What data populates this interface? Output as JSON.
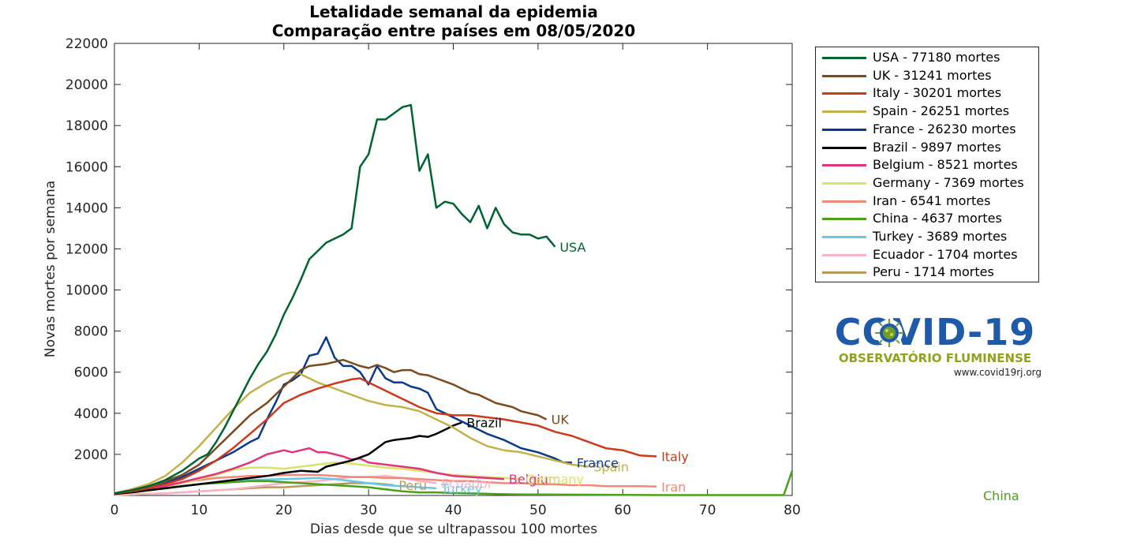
{
  "chart_data": {
    "type": "line",
    "title": [
      "Letalidade semanal da epidemia",
      "Comparação entre países em 08/05/2020"
    ],
    "xlabel": "Dias desde que se ultrapassou 100 mortes",
    "ylabel": "Novas mortes por semana",
    "xlim": [
      0,
      80
    ],
    "ylim": [
      0,
      22000
    ],
    "xticks": [
      0,
      10,
      20,
      30,
      40,
      50,
      60,
      70,
      80
    ],
    "yticks": [
      2000,
      4000,
      6000,
      8000,
      10000,
      12000,
      14000,
      16000,
      18000,
      20000,
      22000
    ],
    "grid": false,
    "legend_position": "outside-right",
    "series": [
      {
        "name": "USA - 77180 mortes",
        "end_label": "USA",
        "color": "#006430",
        "x": [
          0,
          2,
          4,
          6,
          8,
          10,
          11,
          12,
          13,
          14,
          15,
          16,
          17,
          18,
          19,
          20,
          21,
          22,
          23,
          24,
          25,
          26,
          27,
          28,
          29,
          30,
          31,
          32,
          33,
          34,
          35,
          36,
          37,
          38,
          39,
          40,
          41,
          42,
          43,
          44,
          45,
          46,
          47,
          48,
          49,
          50,
          51,
          52
        ],
        "y": [
          100,
          250,
          450,
          750,
          1200,
          1800,
          2000,
          2600,
          3300,
          4100,
          4900,
          5700,
          6400,
          7000,
          7800,
          8800,
          9600,
          10500,
          11500,
          11900,
          12300,
          12500,
          12700,
          13000,
          16000,
          16600,
          18300,
          18300,
          18600,
          18900,
          19000,
          15800,
          16600,
          14000,
          14300,
          14200,
          13700,
          13300,
          14100,
          13000,
          14000,
          13200,
          12800,
          12700,
          12700,
          12500,
          12600,
          12100
        ]
      },
      {
        "name": "UK - 31241 mortes",
        "end_label": "UK",
        "color": "#7b4a1c",
        "x": [
          0,
          2,
          4,
          6,
          8,
          10,
          12,
          14,
          16,
          18,
          20,
          22,
          23,
          24,
          25,
          26,
          27,
          28,
          29,
          30,
          31,
          32,
          33,
          34,
          35,
          36,
          37,
          38,
          39,
          40,
          41,
          42,
          43,
          44,
          45,
          46,
          47,
          48,
          49,
          50,
          51
        ],
        "y": [
          100,
          250,
          450,
          700,
          1000,
          1500,
          2300,
          3100,
          3900,
          4500,
          5300,
          6100,
          6300,
          6350,
          6400,
          6500,
          6600,
          6450,
          6300,
          6200,
          6350,
          6200,
          6000,
          6100,
          6100,
          5900,
          5850,
          5700,
          5550,
          5400,
          5200,
          5000,
          4900,
          4700,
          4500,
          4400,
          4300,
          4100,
          4000,
          3900,
          3700
        ]
      },
      {
        "name": "Italy - 30201 mortes",
        "end_label": "Italy",
        "color": "#cc3a1a",
        "x": [
          0,
          2,
          4,
          6,
          8,
          10,
          12,
          14,
          16,
          18,
          20,
          22,
          24,
          26,
          28,
          29,
          30,
          32,
          34,
          36,
          38,
          40,
          42,
          44,
          46,
          48,
          50,
          52,
          54,
          56,
          58,
          60,
          62,
          64
        ],
        "y": [
          100,
          200,
          350,
          550,
          800,
          1200,
          1700,
          2300,
          3000,
          3700,
          4500,
          4900,
          5200,
          5450,
          5650,
          5700,
          5500,
          5100,
          4700,
          4300,
          4000,
          3900,
          3900,
          3800,
          3700,
          3550,
          3400,
          3100,
          2900,
          2600,
          2300,
          2200,
          1950,
          1900
        ]
      },
      {
        "name": "Spain - 26251 mortes",
        "end_label": "Spain",
        "color": "#c2b24a",
        "x": [
          0,
          2,
          4,
          6,
          8,
          10,
          12,
          14,
          16,
          18,
          20,
          21,
          22,
          23,
          24,
          25,
          26,
          28,
          30,
          32,
          34,
          36,
          38,
          40,
          42,
          44,
          46,
          48,
          50,
          52,
          54,
          56
        ],
        "y": [
          100,
          300,
          550,
          950,
          1600,
          2400,
          3300,
          4200,
          5000,
          5500,
          5900,
          6000,
          5900,
          5700,
          5500,
          5350,
          5200,
          4900,
          4600,
          4400,
          4300,
          4100,
          3700,
          3300,
          2800,
          2400,
          2200,
          2100,
          1900,
          1700,
          1500,
          1400
        ]
      },
      {
        "name": "France - 26230 mortes",
        "end_label": "France",
        "color": "#0a3a8c",
        "x": [
          0,
          2,
          4,
          6,
          8,
          10,
          12,
          14,
          16,
          17,
          18,
          19,
          20,
          21,
          22,
          23,
          24,
          25,
          26,
          27,
          28,
          29,
          30,
          31,
          32,
          33,
          34,
          35,
          36,
          37,
          38,
          39,
          40,
          42,
          44,
          46,
          48,
          50,
          52,
          53,
          54
        ],
        "y": [
          100,
          200,
          350,
          600,
          900,
          1300,
          1700,
          2100,
          2600,
          2800,
          3700,
          4500,
          5400,
          5600,
          5900,
          6800,
          6900,
          7700,
          6700,
          6300,
          6300,
          6000,
          5400,
          6300,
          5700,
          5500,
          5500,
          5300,
          5200,
          5000,
          4200,
          4000,
          3800,
          3400,
          3000,
          2700,
          2300,
          2100,
          1800,
          1600,
          1600
        ]
      },
      {
        "name": "Brazil - 9897 mortes",
        "end_label": "Brazil",
        "color": "#000000",
        "x": [
          0,
          2,
          4,
          6,
          8,
          10,
          12,
          14,
          16,
          18,
          20,
          22,
          24,
          25,
          26,
          28,
          30,
          31,
          32,
          33,
          34,
          35,
          36,
          37,
          38,
          39,
          40,
          41
        ],
        "y": [
          80,
          150,
          250,
          350,
          450,
          550,
          650,
          750,
          850,
          950,
          1100,
          1200,
          1150,
          1400,
          1500,
          1700,
          2000,
          2300,
          2600,
          2700,
          2750,
          2800,
          2900,
          2850,
          3000,
          3200,
          3400,
          3550
        ]
      },
      {
        "name": "Belgium - 8521 mortes",
        "end_label": "Belgium",
        "color": "#e0357c",
        "x": [
          0,
          2,
          4,
          6,
          8,
          10,
          12,
          14,
          16,
          18,
          19,
          20,
          21,
          22,
          23,
          24,
          25,
          26,
          27,
          28,
          29,
          30,
          32,
          34,
          36,
          38,
          40,
          42,
          44,
          46
        ],
        "y": [
          60,
          150,
          300,
          450,
          650,
          850,
          1050,
          1300,
          1600,
          2000,
          2100,
          2200,
          2100,
          2200,
          2300,
          2100,
          2100,
          2000,
          1900,
          1750,
          1800,
          1600,
          1500,
          1400,
          1300,
          1100,
          950,
          900,
          850,
          800
        ]
      },
      {
        "name": "Germany - 7369 mortes",
        "end_label": "Germany",
        "color": "#d9e36a",
        "x": [
          0,
          2,
          4,
          6,
          8,
          10,
          12,
          14,
          16,
          18,
          20,
          22,
          24,
          26,
          28,
          30,
          32,
          34,
          36,
          38,
          40,
          42,
          44,
          46,
          48
        ],
        "y": [
          60,
          120,
          250,
          400,
          600,
          800,
          1000,
          1250,
          1350,
          1350,
          1300,
          1400,
          1500,
          1600,
          1550,
          1450,
          1350,
          1300,
          1200,
          1100,
          1000,
          950,
          900,
          850,
          800
        ]
      },
      {
        "name": "Iran - 6541 mortes",
        "end_label": "Iran",
        "color": "#f08a78",
        "x": [
          0,
          2,
          4,
          6,
          8,
          10,
          12,
          14,
          16,
          18,
          20,
          22,
          24,
          26,
          28,
          30,
          32,
          34,
          36,
          38,
          40,
          42,
          44,
          46,
          48,
          50,
          52,
          54,
          56,
          58,
          60,
          62,
          64
        ],
        "y": [
          80,
          200,
          350,
          500,
          650,
          750,
          850,
          900,
          950,
          950,
          1000,
          1000,
          1000,
          950,
          900,
          900,
          850,
          850,
          800,
          750,
          700,
          700,
          650,
          600,
          600,
          550,
          550,
          500,
          500,
          450,
          450,
          450,
          430
        ]
      },
      {
        "name": "China - 4637 mortes",
        "end_label": "China",
        "color": "#4aa016",
        "x": [
          0,
          2,
          4,
          6,
          8,
          10,
          12,
          14,
          16,
          18,
          20,
          22,
          24,
          26,
          28,
          30,
          32,
          34,
          36,
          38,
          40,
          42,
          44,
          46,
          48,
          50,
          55,
          60,
          65,
          70,
          75,
          79,
          80
        ],
        "y": [
          80,
          150,
          250,
          350,
          450,
          550,
          600,
          650,
          700,
          700,
          650,
          600,
          550,
          500,
          450,
          400,
          300,
          200,
          150,
          150,
          120,
          100,
          80,
          60,
          50,
          50,
          40,
          30,
          20,
          20,
          20,
          20,
          1200
        ]
      },
      {
        "name": "Turkey - 3689 mortes",
        "end_label": "Turkey",
        "color": "#64c8e6",
        "x": [
          0,
          2,
          4,
          6,
          8,
          10,
          12,
          14,
          16,
          18,
          20,
          22,
          24,
          26,
          28,
          30,
          32,
          34,
          36,
          38
        ],
        "y": [
          80,
          150,
          250,
          350,
          450,
          550,
          650,
          700,
          750,
          780,
          800,
          820,
          850,
          800,
          700,
          600,
          500,
          450,
          400,
          350
        ]
      },
      {
        "name": "Ecuador - 1704 mortes",
        "end_label": "Ecuador",
        "color": "#f7b3c7",
        "x": [
          0,
          2,
          4,
          6,
          8,
          10,
          12,
          14,
          16,
          18,
          20,
          22,
          24,
          26,
          28,
          30,
          32,
          34,
          36,
          38
        ],
        "y": [
          30,
          50,
          80,
          100,
          150,
          200,
          250,
          300,
          400,
          500,
          600,
          650,
          700,
          800,
          900,
          900,
          950,
          850,
          700,
          600
        ]
      },
      {
        "name": "Peru - 1714 mortes",
        "end_label": "Peru",
        "color": "#b89a5e",
        "x": [
          0,
          2,
          4,
          6,
          8,
          10,
          12,
          14,
          16,
          18,
          20,
          22,
          24,
          26,
          28,
          30,
          32,
          33
        ],
        "y": [
          30,
          50,
          80,
          100,
          150,
          200,
          250,
          300,
          350,
          400,
          400,
          450,
          500,
          550,
          600,
          600,
          550,
          500
        ]
      }
    ]
  },
  "logo": {
    "title": "COVID-19",
    "subtitle": "OBSERVATÓRIO FLUMINENSE",
    "url": "www.covid19rj.org"
  }
}
